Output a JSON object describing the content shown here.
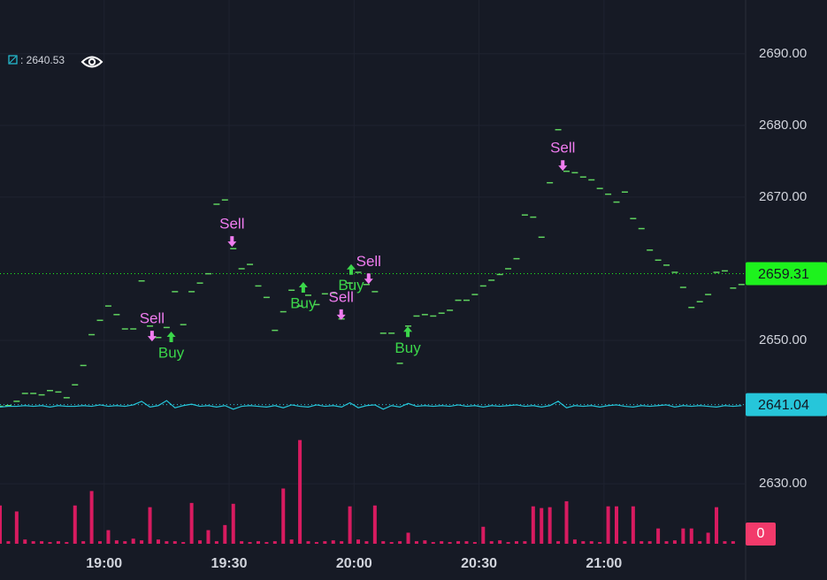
{
  "chart_data": {
    "type": "line",
    "x": [
      1115,
      1117,
      1119,
      1121,
      1123,
      1125,
      1127,
      1129,
      1131,
      1133,
      1135,
      1137,
      1139,
      1141,
      1143,
      1145,
      1147,
      1149,
      1151,
      1153,
      1155,
      1157,
      1159,
      1161,
      1163,
      1165,
      1167,
      1169,
      1171,
      1173,
      1175,
      1177,
      1179,
      1181,
      1183,
      1185,
      1187,
      1189,
      1191,
      1193,
      1195,
      1197,
      1199,
      1201,
      1203,
      1205,
      1207,
      1209,
      1211,
      1213,
      1215,
      1217,
      1219,
      1221,
      1223,
      1225,
      1227,
      1229,
      1231,
      1233,
      1235,
      1237,
      1239,
      1241,
      1243,
      1245,
      1247,
      1249,
      1251,
      1253,
      1255,
      1257,
      1259,
      1261,
      1263,
      1265,
      1267,
      1269,
      1271,
      1273,
      1275,
      1277,
      1279,
      1281,
      1283,
      1285,
      1287,
      1289,
      1291,
      1293
    ],
    "xlim": [
      1115,
      1294
    ],
    "xticks": [
      {
        "value": 1140,
        "label": "19:00"
      },
      {
        "value": 1170,
        "label": "19:30"
      },
      {
        "value": 1200,
        "label": "20:00"
      },
      {
        "value": 1230,
        "label": "20:30"
      },
      {
        "value": 1260,
        "label": "21:00"
      }
    ],
    "ylim": [
      2621.5,
      2697.5
    ],
    "yticks": [
      {
        "value": 2690,
        "label": "2690.00"
      },
      {
        "value": 2680,
        "label": "2680.00"
      },
      {
        "value": 2670,
        "label": "2670.00"
      },
      {
        "value": 2650,
        "label": "2650.00"
      },
      {
        "value": 2630,
        "label": "2630.00"
      }
    ],
    "grid": true,
    "legend_value": ": 2640.53",
    "series": [
      {
        "color": "#5fd35f",
        "style": "dash",
        "values": [
          2640.8,
          2640.9,
          2641.5,
          2642.6,
          2642.6,
          2642.4,
          2643.0,
          2642.8,
          2642.0,
          2643.8,
          2646.5,
          2650.8,
          2652.8,
          2654.8,
          2653.6,
          2651.6,
          2651.6,
          2658.3,
          2652.0,
          2650.4,
          2651.8,
          2656.8,
          2652.2,
          2656.8,
          2658.0,
          2659.3,
          2669.0,
          2669.6,
          2662.8,
          2660.0,
          2660.6,
          2657.6,
          2656.0,
          2651.4,
          2654.0,
          2657.0,
          2654.8,
          2656.3,
          2655.0,
          2656.5,
          2656.6,
          2653.0,
          2658.0,
          2659.5,
          2657.8,
          2656.8,
          2651.0,
          2651.0,
          2646.8,
          2652.0,
          2653.4,
          2653.6,
          2653.4,
          2653.8,
          2654.2,
          2655.6,
          2655.6,
          2656.4,
          2657.6,
          2658.4,
          2659.2,
          2660.0,
          2661.4,
          2667.5,
          2667.2,
          2664.4,
          2672.0,
          2679.4,
          2673.6,
          2673.4,
          2672.8,
          2672.4,
          2671.2,
          2670.4,
          2669.3,
          2670.7,
          2667.0,
          2665.6,
          2662.6,
          2661.2,
          2660.5,
          2659.5,
          2657.4,
          2654.6,
          2655.4,
          2656.4,
          2659.5,
          2659.7,
          2657.3,
          2657.8
        ]
      },
      {
        "color": "#26c6da",
        "style": "line",
        "values": [
          2640.7,
          2640.8,
          2640.8,
          2640.9,
          2640.8,
          2640.9,
          2640.7,
          2640.9,
          2640.8,
          2640.8,
          2640.9,
          2640.8,
          2641.0,
          2640.8,
          2640.9,
          2640.8,
          2641.0,
          2641.5,
          2640.7,
          2640.9,
          2641.6,
          2640.6,
          2640.9,
          2641.1,
          2640.8,
          2640.9,
          2640.7,
          2640.9,
          2640.4,
          2640.8,
          2640.9,
          2640.8,
          2640.7,
          2640.9,
          2640.6,
          2641.0,
          2640.8,
          2640.7,
          2641.0,
          2640.8,
          2640.9,
          2640.7,
          2641.3,
          2640.6,
          2640.9,
          2641.0,
          2640.4,
          2640.9,
          2640.7,
          2641.2,
          2640.8,
          2640.9,
          2640.8,
          2640.9,
          2640.8,
          2641.0,
          2640.8,
          2640.9,
          2640.7,
          2640.9,
          2640.8,
          2640.9,
          2641.0,
          2640.8,
          2640.9,
          2640.7,
          2640.9,
          2641.5,
          2640.6,
          2640.9,
          2640.8,
          2640.9,
          2640.7,
          2640.9,
          2641.0,
          2640.8,
          2640.7,
          2640.9,
          2640.8,
          2640.9,
          2641.0,
          2640.7,
          2640.9,
          2640.8,
          2640.9,
          2640.8,
          2640.7,
          2640.9,
          2640.8,
          2640.9
        ]
      }
    ],
    "price_markers": [
      {
        "value": 2659.31,
        "color": "#1df21d"
      },
      {
        "value": 2641.04,
        "color": "#26c6da"
      }
    ],
    "signals": [
      {
        "label": "Sell",
        "marker": "arrow-down",
        "color": "#f07cf0",
        "x": 1151.5,
        "y": 2650.6
      },
      {
        "label": "Buy",
        "marker": "arrow-up",
        "color": "#3bd64a",
        "x": 1156.1,
        "y": 2650.5
      },
      {
        "label": "Sell",
        "marker": "arrow-down",
        "color": "#f07cf0",
        "x": 1170.7,
        "y": 2663.8
      },
      {
        "label": "Buy",
        "marker": "arrow-up",
        "color": "#3bd64a",
        "x": 1187.8,
        "y": 2657.4
      },
      {
        "label": "Sell",
        "marker": "arrow-down",
        "color": "#f07cf0",
        "x": 1196.9,
        "y": 2653.6
      },
      {
        "label": "Buy",
        "marker": "arrow-up",
        "color": "#3bd64a",
        "x": 1199.3,
        "y": 2659.9
      },
      {
        "label": "Sell",
        "marker": "arrow-down",
        "color": "#f07cf0",
        "x": 1203.5,
        "y": 2658.6
      },
      {
        "label": "Buy",
        "marker": "arrow-up",
        "color": "#3bd64a",
        "x": 1212.9,
        "y": 2651.2
      },
      {
        "label": "Sell",
        "marker": "arrow-down",
        "color": "#f07cf0",
        "x": 1250.1,
        "y": 2674.4
      }
    ],
    "volume": {
      "color": "#d81b60",
      "ylim": [
        0,
        130
      ],
      "values": [
        45,
        3,
        38,
        5,
        3,
        3,
        2,
        3,
        2,
        45,
        3,
        62,
        3,
        16,
        4,
        3,
        6,
        4,
        43,
        5,
        3,
        3,
        2,
        48,
        4,
        16,
        3,
        22,
        47,
        3,
        2,
        3,
        2,
        3,
        65,
        5,
        122,
        3,
        2,
        3,
        4,
        3,
        44,
        5,
        3,
        45,
        3,
        2,
        3,
        13,
        3,
        4,
        2,
        3,
        2,
        3,
        3,
        2,
        20,
        3,
        4,
        2,
        3,
        3,
        44,
        42,
        43,
        3,
        50,
        5,
        3,
        3,
        2,
        44,
        44,
        3,
        44,
        3,
        3,
        18,
        3,
        4,
        18,
        18,
        3,
        13,
        43,
        3,
        3,
        0
      ]
    }
  }
}
